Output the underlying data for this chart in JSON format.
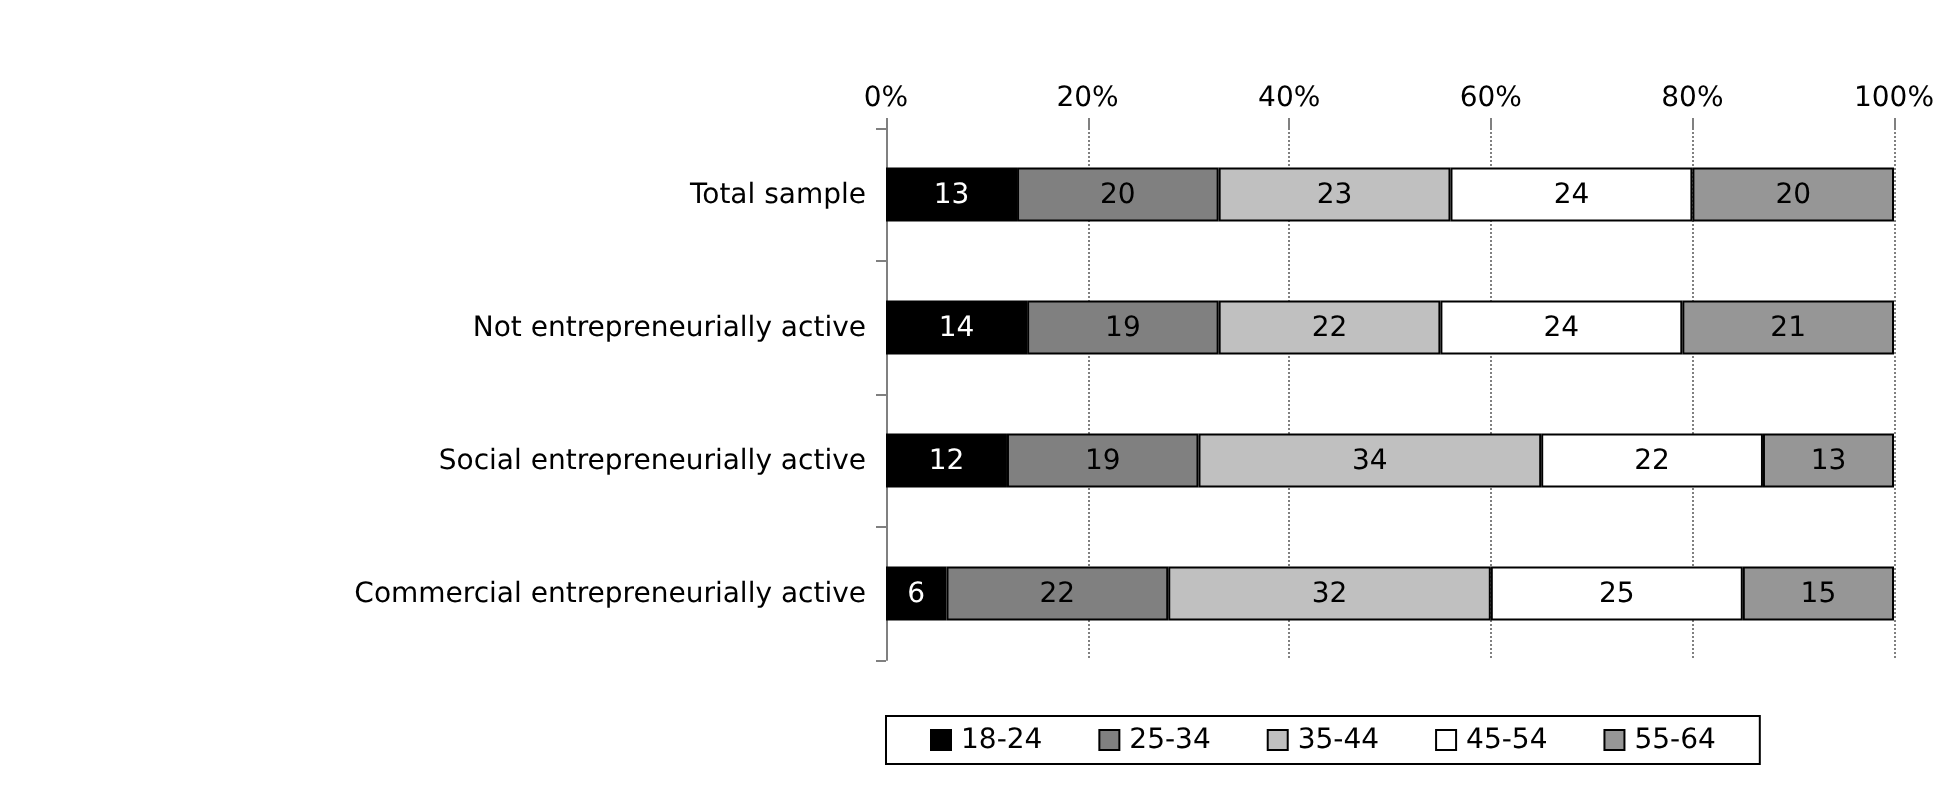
{
  "chart_data": {
    "type": "bar",
    "orientation": "horizontal",
    "stacked": true,
    "categories": [
      "Total sample",
      "Not entrepreneurially active",
      "Social entrepreneurially active",
      "Commercial entrepreneurially active"
    ],
    "series": [
      {
        "name": "18-24",
        "color": "#000000",
        "values": [
          13,
          14,
          12,
          6
        ]
      },
      {
        "name": "25-34",
        "color": "#808080",
        "values": [
          20,
          19,
          19,
          22
        ]
      },
      {
        "name": "35-44",
        "color": "#c0c0c0",
        "values": [
          23,
          22,
          34,
          32
        ]
      },
      {
        "name": "45-54",
        "color": "#ffffff",
        "values": [
          24,
          24,
          22,
          25
        ]
      },
      {
        "name": "55-64",
        "color": "#969696",
        "values": [
          20,
          21,
          13,
          15
        ]
      }
    ],
    "xlim": [
      0,
      100
    ],
    "xticks": [
      {
        "value": 0,
        "label": "0%"
      },
      {
        "value": 20,
        "label": "20%"
      },
      {
        "value": 40,
        "label": "40%"
      },
      {
        "value": 60,
        "label": "60%"
      },
      {
        "value": 80,
        "label": "80%"
      },
      {
        "value": 100,
        "label": "100%"
      }
    ],
    "grid": "x",
    "legend": "bottom",
    "data_labels": true
  }
}
